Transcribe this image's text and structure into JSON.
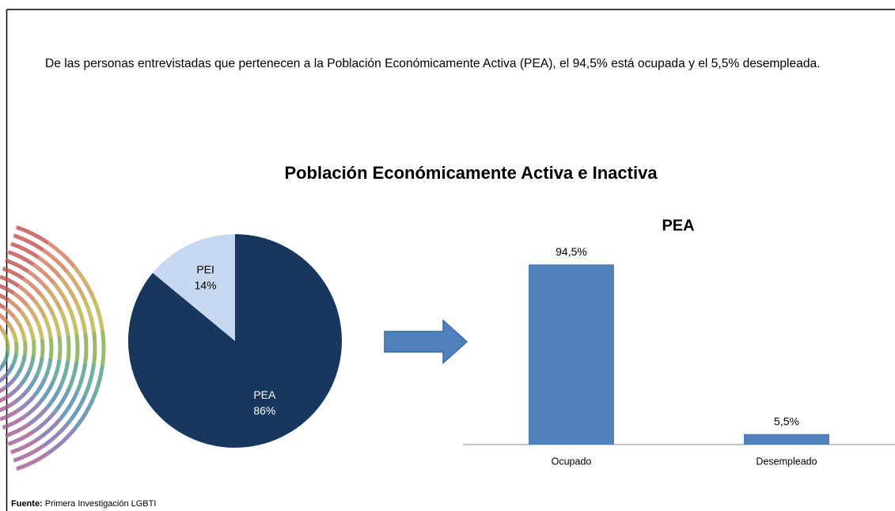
{
  "text": "De las personas entrevistadas que pertenecen a la Población Económicamente Activa (PEA), el 94,5% está ocupada y el 5,5% desempleada.",
  "title": "Población Económicamente Activa e Inactiva",
  "chart_data": [
    {
      "type": "pie",
      "categories": [
        "PEA",
        "PEI"
      ],
      "values": [
        86,
        14
      ],
      "value_labels": [
        "86%",
        "14%"
      ],
      "colors": [
        "#17375e",
        "#c6d9f0"
      ],
      "label_colors": [
        "#ffffff",
        "#000000"
      ]
    },
    {
      "type": "bar",
      "title": "PEA",
      "categories": [
        "Ocupado",
        "Desempleado"
      ],
      "values": [
        94.5,
        5.5
      ],
      "value_labels": [
        "94,5%",
        "5,5%"
      ],
      "color": "#4f81bd"
    }
  ],
  "source": {
    "label": "Fuente:",
    "text": "Primera Investigación LGBTI"
  }
}
